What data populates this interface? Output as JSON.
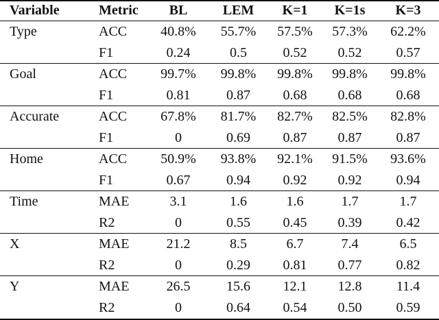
{
  "table": {
    "header": [
      "Variable",
      "Metric",
      "BL",
      "LEM",
      "K=1",
      "K=1s",
      "K=3"
    ],
    "groups": [
      {
        "variable": "Type",
        "rows": [
          [
            "ACC",
            "40.8%",
            "55.7%",
            "57.5%",
            "57.3%",
            "62.2%"
          ],
          [
            "F1",
            "0.24",
            "0.5",
            "0.52",
            "0.52",
            "0.57"
          ]
        ]
      },
      {
        "variable": "Goal",
        "rows": [
          [
            "ACC",
            "99.7%",
            "99.8%",
            "99.8%",
            "99.8%",
            "99.8%"
          ],
          [
            "F1",
            "0.81",
            "0.87",
            "0.68",
            "0.68",
            "0.68"
          ]
        ]
      },
      {
        "variable": "Accurate",
        "rows": [
          [
            "ACC",
            "67.8%",
            "81.7%",
            "82.7%",
            "82.5%",
            "82.8%"
          ],
          [
            "F1",
            "0",
            "0.69",
            "0.87",
            "0.87",
            "0.87"
          ]
        ]
      },
      {
        "variable": "Home",
        "rows": [
          [
            "ACC",
            "50.9%",
            "93.8%",
            "92.1%",
            "91.5%",
            "93.6%"
          ],
          [
            "F1",
            "0.67",
            "0.94",
            "0.92",
            "0.92",
            "0.94"
          ]
        ]
      },
      {
        "variable": "Time",
        "rows": [
          [
            "MAE",
            "3.1",
            "1.6",
            "1.6",
            "1.7",
            "1.7"
          ],
          [
            "R2",
            "0",
            "0.55",
            "0.45",
            "0.39",
            "0.42"
          ]
        ]
      },
      {
        "variable": "X",
        "rows": [
          [
            "MAE",
            "21.2",
            "8.5",
            "6.7",
            "7.4",
            "6.5"
          ],
          [
            "R2",
            "0",
            "0.29",
            "0.81",
            "0.77",
            "0.82"
          ]
        ]
      },
      {
        "variable": "Y",
        "rows": [
          [
            "MAE",
            "26.5",
            "15.6",
            "12.1",
            "12.8",
            "11.4"
          ],
          [
            "R2",
            "0",
            "0.64",
            "0.54",
            "0.50",
            "0.59"
          ]
        ]
      }
    ]
  }
}
